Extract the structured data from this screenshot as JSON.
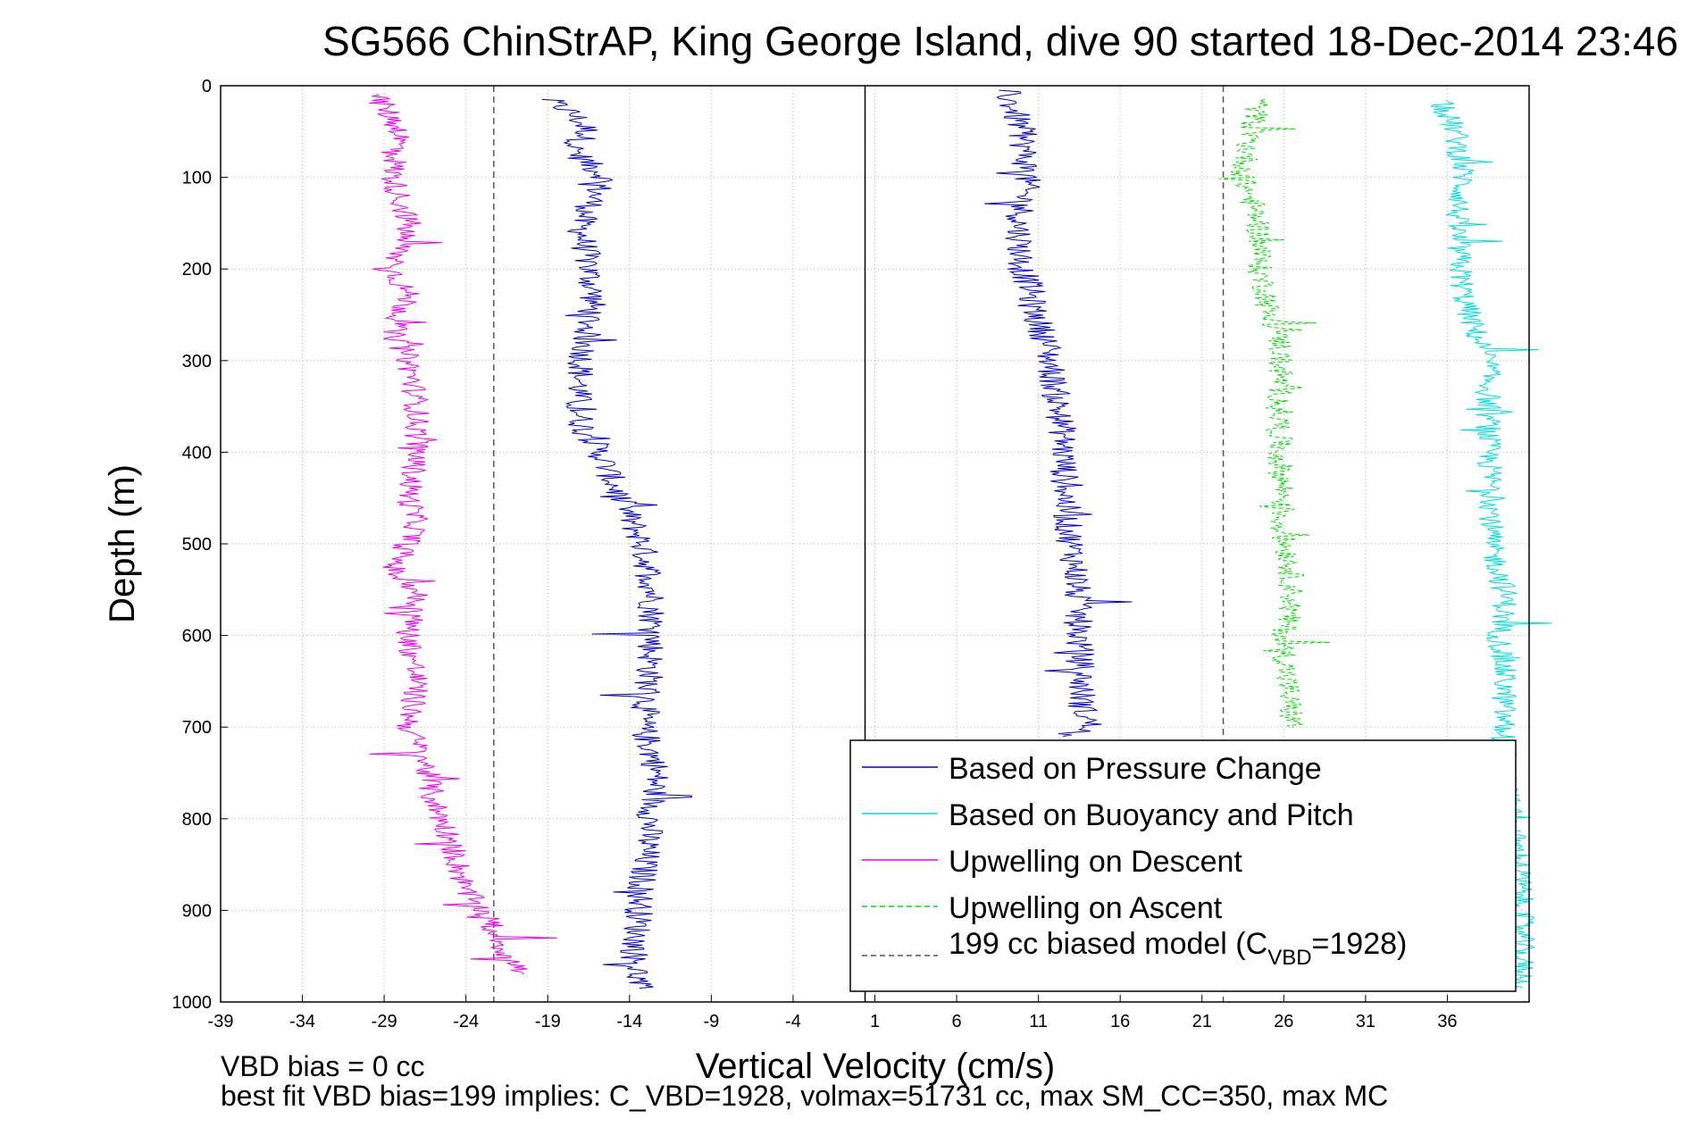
{
  "chart_data": {
    "type": "line",
    "title": "SG566 ChinStrAP, King George Island, dive 90 started 18-Dec-2014 23:46",
    "xlabel": "Vertical Velocity (cm/s)",
    "ylabel": "Depth (m)",
    "xlim": [
      -39,
      41
    ],
    "ylim": [
      0,
      1000
    ],
    "y_reversed": true,
    "grid": true,
    "legend_position": "bottom-right",
    "xticks": [
      "-39",
      "-34",
      "-29",
      "-24",
      "-19",
      "-14",
      "-9",
      "-4",
      "1",
      "6",
      "11",
      "16",
      "21",
      "26",
      "31",
      "36"
    ],
    "yticks": [
      "0",
      "100",
      "200",
      "300",
      "400",
      "500",
      "600",
      "700",
      "800",
      "900",
      "1000"
    ],
    "vertical_lines": [
      {
        "x": 0.4,
        "style": "solid",
        "color": "#000000"
      },
      {
        "x": -22.3,
        "style": "dashed",
        "color": "#555555"
      },
      {
        "x": 22.3,
        "style": "dashed",
        "color": "#555555"
      }
    ],
    "series": [
      {
        "name": "Based on Pressure Change",
        "color": "#0000cc",
        "style": "solid",
        "segments": [
          {
            "x": [
              -19,
              -17.5,
              -16.5,
              -17.5,
              -15.5,
              -17,
              -16.5,
              -16.2,
              -16.6,
              -16.9,
              -17.2,
              -16.9,
              -15.8,
              -14.6,
              -13.2,
              -12.6,
              -12.6,
              -12.8,
              -13.2,
              -12.4,
              -12.4,
              -12.7,
              -13,
              -13.3,
              -13.5,
              -13.7,
              -13.4
            ],
            "y": [
              15,
              30,
              50,
              70,
              100,
              150,
              200,
              230,
              270,
              300,
              350,
              370,
              400,
              450,
              500,
              550,
              600,
              650,
              700,
              740,
              760,
              800,
              840,
              880,
              920,
              950,
              985
            ]
          },
          {
            "x": [
              9,
              10,
              10.3,
              9.8,
              10,
              10.5,
              10.6,
              11.5,
              12,
              12.5,
              12.6,
              12.8,
              13.3,
              13.4,
              13.6,
              13.7,
              14.2,
              12.5
            ],
            "y": [
              5,
              50,
              100,
              150,
              200,
              220,
              240,
              280,
              330,
              380,
              430,
              480,
              530,
              580,
              640,
              680,
              700,
              710
            ]
          }
        ]
      },
      {
        "name": "Based on Buoyancy and Pitch",
        "color": "#00dddd",
        "style": "solid",
        "segments": [
          {
            "x": [
              35.5,
              36.5,
              37,
              36.5,
              36.8,
              37,
              37.5,
              38.5,
              38.5,
              38.5,
              38.8,
              38.6,
              39.2,
              39.6,
              39.2,
              39.5,
              39.4,
              39.6,
              39.8,
              40.3,
              40.5,
              40.5,
              40.6
            ],
            "y": [
              15,
              50,
              100,
              150,
              200,
              230,
              260,
              300,
              350,
              400,
              450,
              500,
              530,
              560,
              600,
              650,
              700,
              750,
              800,
              840,
              880,
              930,
              985
            ]
          }
        ]
      },
      {
        "name": "Upwelling on Descent",
        "color": "#ee00ee",
        "style": "solid",
        "segments": [
          {
            "x": [
              -29.5,
              -28,
              -28.5,
              -27.5,
              -28.5,
              -27.5,
              -28.5,
              -27.5,
              -27,
              -27,
              -27.5,
              -27,
              -28.5,
              -27,
              -27.5,
              -27,
              -27.5,
              -27,
              -26.5,
              -26,
              -25,
              -24.5,
              -24,
              -23,
              -22,
              -21.5,
              -20.5
            ],
            "y": [
              10,
              50,
              100,
              150,
              200,
              230,
              270,
              300,
              350,
              400,
              450,
              480,
              530,
              550,
              600,
              650,
              700,
              720,
              740,
              780,
              820,
              850,
              880,
              900,
              930,
              950,
              970
            ]
          }
        ]
      },
      {
        "name": "Upwelling on Ascent",
        "color": "#00dd00",
        "style": "dashed",
        "segments": [
          {
            "x": [
              24.5,
              24,
              23.5,
              24.5,
              24.5,
              25,
              25,
              25.8,
              25.8,
              25.7,
              26,
              25.8,
              26.4,
              26.5,
              26,
              26.2,
              26.4,
              26.6
            ],
            "y": [
              15,
              50,
              100,
              150,
              200,
              230,
              250,
              280,
              350,
              400,
              450,
              480,
              520,
              560,
              600,
              650,
              680,
              700
            ]
          }
        ]
      }
    ],
    "legend_model_label": "199 cc biased model (C",
    "legend_model_sub": "VBD",
    "legend_model_tail": "=1928)"
  },
  "notes": {
    "line1": "VBD bias = 0 cc",
    "line2": "best fit VBD bias=199 implies: C_VBD=1928, volmax=51731 cc, max SM_CC=350, max MC"
  }
}
